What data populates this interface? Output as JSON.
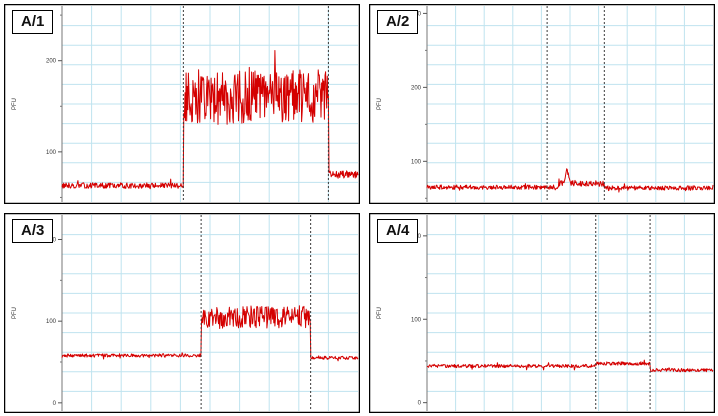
{
  "colors": {
    "trace": "#d40000",
    "grid": "#bfe3ef",
    "marker": "#3a3a3a",
    "axis": "#000000"
  },
  "chart_data": [
    {
      "panel_label": "A/1",
      "type": "line",
      "ylabel": "PFU",
      "ylim": [
        45,
        260
      ],
      "yticks": [
        100,
        200
      ],
      "ytick_labels": [
        "100",
        "200"
      ],
      "event_markers": [
        0.41,
        0.9
      ],
      "series": [
        {
          "segments": [
            {
              "t0": 0.0,
              "t1": 0.41,
              "mean": 63,
              "amp": 3
            },
            {
              "t0": 0.41,
              "t1": 0.9,
              "mean": 160,
              "amp": 30
            },
            {
              "t0": 0.9,
              "t1": 1.0,
              "mean": 75,
              "amp": 4
            }
          ]
        }
      ]
    },
    {
      "panel_label": "A/2",
      "type": "line",
      "ylabel": "PFU",
      "ylim": [
        45,
        310
      ],
      "yticks": [
        100,
        200,
        300
      ],
      "ytick_labels": [
        "100",
        "200",
        "300"
      ],
      "event_markers": [
        0.42,
        0.62
      ],
      "series": [
        {
          "segments": [
            {
              "t0": 0.0,
              "t1": 0.46,
              "mean": 65,
              "amp": 3
            },
            {
              "t0": 0.46,
              "t1": 0.62,
              "mean": 70,
              "amp": 4
            },
            {
              "t0": 0.62,
              "t1": 1.0,
              "mean": 64,
              "amp": 3
            }
          ]
        }
      ],
      "spike": {
        "t": 0.49,
        "peak": 93
      }
    },
    {
      "panel_label": "A/3",
      "type": "line",
      "ylabel": "PFU",
      "ylim": [
        -10,
        230
      ],
      "yticks": [
        0,
        100,
        200
      ],
      "ytick_labels": [
        "0",
        "100",
        "200"
      ],
      "event_markers": [
        0.47,
        0.84
      ],
      "series": [
        {
          "segments": [
            {
              "t0": 0.0,
              "t1": 0.47,
              "mean": 58,
              "amp": 2
            },
            {
              "t0": 0.47,
              "t1": 0.84,
              "mean": 105,
              "amp": 14
            },
            {
              "t0": 0.84,
              "t1": 1.0,
              "mean": 55,
              "amp": 2
            }
          ]
        }
      ]
    },
    {
      "panel_label": "A/4",
      "type": "line",
      "ylabel": "PFU",
      "ylim": [
        -10,
        225
      ],
      "yticks": [
        0,
        100,
        200
      ],
      "ytick_labels": [
        "0",
        "100",
        "200"
      ],
      "event_markers": [
        0.59,
        0.78
      ],
      "series": [
        {
          "segments": [
            {
              "t0": 0.0,
              "t1": 0.59,
              "mean": 44,
              "amp": 2
            },
            {
              "t0": 0.59,
              "t1": 0.78,
              "mean": 47,
              "amp": 2
            },
            {
              "t0": 0.78,
              "t1": 1.0,
              "mean": 39,
              "amp": 2
            }
          ]
        }
      ]
    }
  ]
}
